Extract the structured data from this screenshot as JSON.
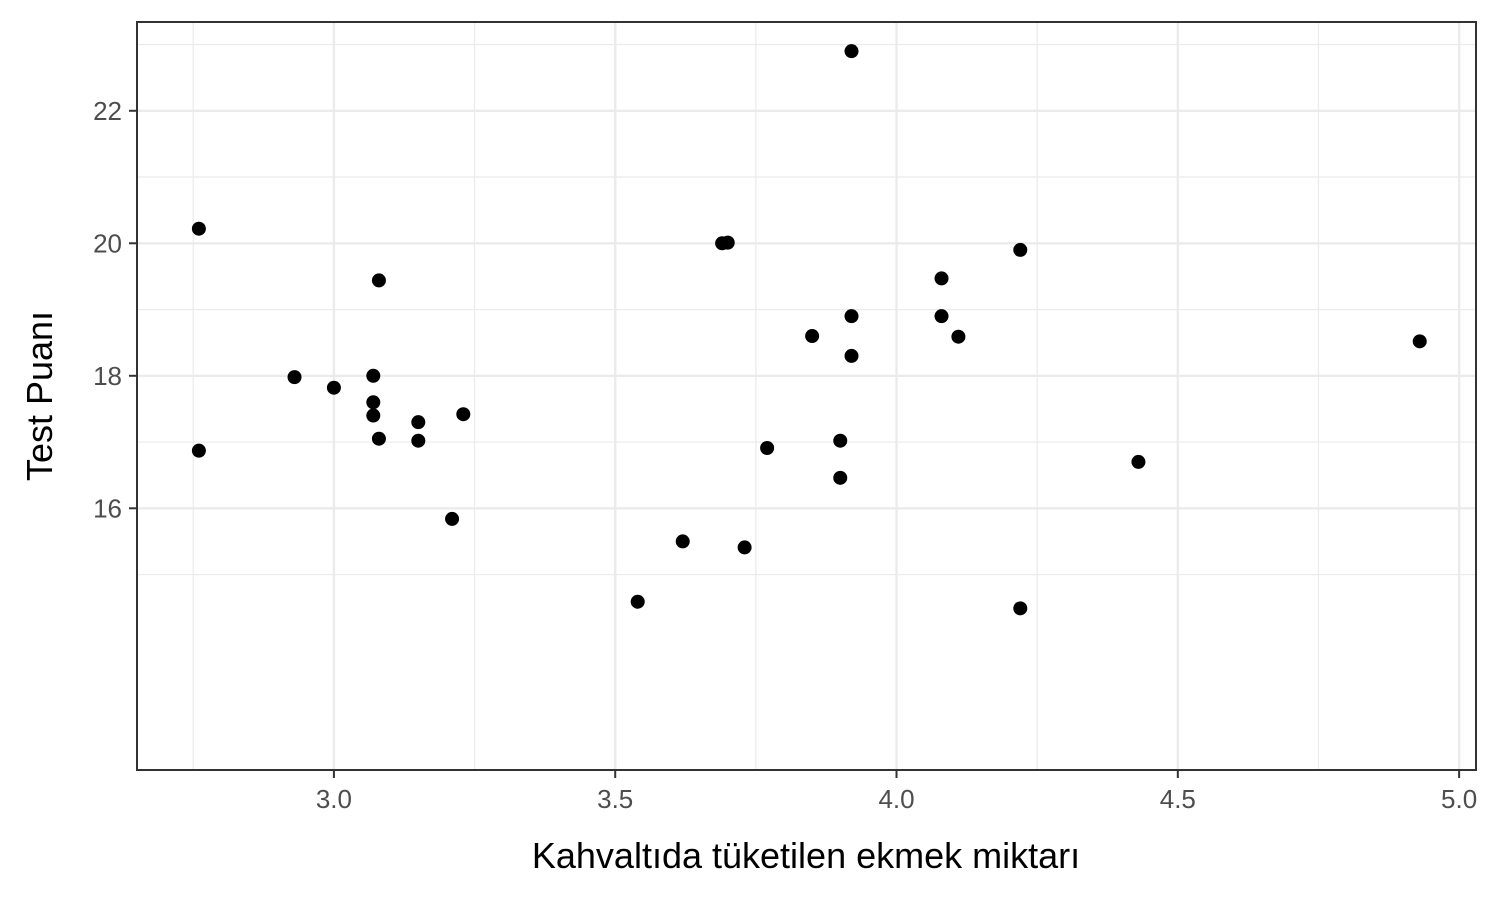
{
  "chart_data": {
    "type": "scatter",
    "title": "",
    "xlabel": "Kahvaltıda tüketilen ekmek miktarı",
    "ylabel": "Test Puanı",
    "xlim": [
      2.65,
      5.03
    ],
    "ylim": [
      12.05,
      23.34
    ],
    "x_ticks": [
      3.0,
      3.5,
      4.0,
      4.5,
      5.0
    ],
    "x_tick_labels": [
      "3.0",
      "3.5",
      "4.0",
      "4.5",
      "5.0"
    ],
    "y_ticks": [
      16,
      18,
      20,
      22
    ],
    "y_tick_labels": [
      "16",
      "18",
      "20",
      "22"
    ],
    "x_minor_ticks": [
      2.75,
      3.25,
      3.75,
      4.25,
      4.75
    ],
    "y_minor_ticks": [
      15,
      17,
      19,
      21,
      23
    ],
    "grid": true,
    "legend": "none",
    "point_color": "#000000",
    "points": [
      {
        "x": 2.76,
        "y": 20.22
      },
      {
        "x": 2.76,
        "y": 16.87
      },
      {
        "x": 2.93,
        "y": 17.98
      },
      {
        "x": 3.0,
        "y": 17.82
      },
      {
        "x": 3.07,
        "y": 18.0
      },
      {
        "x": 3.07,
        "y": 17.6
      },
      {
        "x": 3.07,
        "y": 17.4
      },
      {
        "x": 3.08,
        "y": 19.44
      },
      {
        "x": 3.08,
        "y": 17.05
      },
      {
        "x": 3.15,
        "y": 17.3
      },
      {
        "x": 3.15,
        "y": 17.02
      },
      {
        "x": 3.21,
        "y": 15.84
      },
      {
        "x": 3.23,
        "y": 17.42
      },
      {
        "x": 3.54,
        "y": 14.59
      },
      {
        "x": 3.62,
        "y": 15.5
      },
      {
        "x": 3.69,
        "y": 20.0
      },
      {
        "x": 3.7,
        "y": 20.01
      },
      {
        "x": 3.73,
        "y": 15.41
      },
      {
        "x": 3.77,
        "y": 16.91
      },
      {
        "x": 3.85,
        "y": 18.6
      },
      {
        "x": 3.9,
        "y": 17.02
      },
      {
        "x": 3.9,
        "y": 16.46
      },
      {
        "x": 3.92,
        "y": 22.9
      },
      {
        "x": 3.92,
        "y": 18.9
      },
      {
        "x": 3.92,
        "y": 18.3
      },
      {
        "x": 4.08,
        "y": 19.47
      },
      {
        "x": 4.08,
        "y": 18.9
      },
      {
        "x": 4.11,
        "y": 18.59
      },
      {
        "x": 4.22,
        "y": 19.9
      },
      {
        "x": 4.22,
        "y": 14.49
      },
      {
        "x": 4.43,
        "y": 16.7
      },
      {
        "x": 4.93,
        "y": 18.52
      }
    ]
  }
}
